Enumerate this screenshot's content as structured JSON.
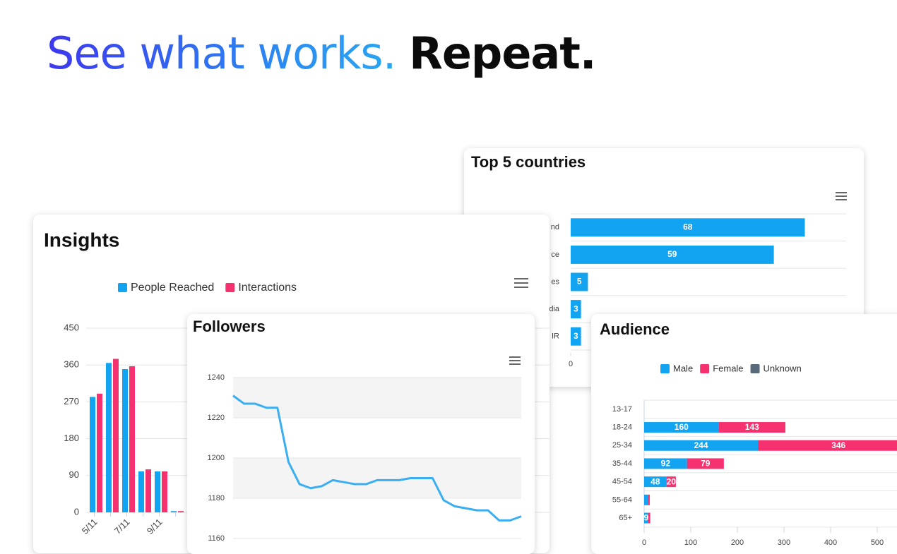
{
  "headline": {
    "part1": "See what works.",
    "part2": "Repeat."
  },
  "chart_data": [
    {
      "type": "bar",
      "title": "Insights",
      "categories": [
        "5/11",
        null,
        "7/11",
        null,
        "9/11",
        null
      ],
      "series": [
        {
          "name": "People Reached",
          "color": "#12a4f0",
          "values": [
            282,
            365,
            350,
            100,
            100,
            3
          ]
        },
        {
          "name": "Interactions",
          "color": "#f5316f",
          "values": [
            290,
            375,
            357,
            105,
            100,
            3
          ]
        }
      ],
      "ylim": [
        0,
        450
      ],
      "yticks": [
        0,
        90,
        180,
        270,
        360,
        450
      ],
      "grid": true,
      "legend": "top"
    },
    {
      "type": "line",
      "title": "Followers",
      "color": "#3aaef0",
      "values": [
        1231,
        1227,
        1227,
        1225,
        1225,
        1198,
        1187,
        1185,
        1186,
        1189,
        1188,
        1187,
        1187,
        1189,
        1189,
        1189,
        1190,
        1190,
        1190,
        1179,
        1176,
        1175,
        1174,
        1174,
        1169,
        1169,
        1171
      ],
      "ylim": [
        1160,
        1240
      ],
      "yticks": [
        1160,
        1180,
        1200,
        1220,
        1240
      ],
      "grid": true
    },
    {
      "type": "hbar",
      "title": "Top 5 countries",
      "color": "#12a4f0",
      "categories": [
        "nd",
        "ce",
        "es",
        "dia",
        "IR"
      ],
      "values": [
        68,
        59,
        5,
        3,
        3
      ],
      "xlim": [
        0,
        80
      ],
      "xticks": [
        0
      ]
    },
    {
      "type": "hbar-stacked",
      "title": "Audience",
      "categories": [
        "13-17",
        "18-24",
        "25-34",
        "35-44",
        "45-54",
        "55-64",
        "65+"
      ],
      "series": [
        {
          "name": "Male",
          "color": "#12a4f0",
          "values": [
            0,
            160,
            244,
            92,
            48,
            8,
            9
          ]
        },
        {
          "name": "Female",
          "color": "#f5316f",
          "values": [
            0,
            143,
            346,
            79,
            20,
            4,
            4
          ]
        },
        {
          "name": "Unknown",
          "color": "#596a7a",
          "values": [
            0,
            0,
            0,
            0,
            0,
            0,
            0
          ]
        }
      ],
      "xlim": [
        0,
        550
      ],
      "xticks": [
        0,
        100,
        200,
        300,
        400,
        500
      ],
      "legend": "top"
    }
  ]
}
